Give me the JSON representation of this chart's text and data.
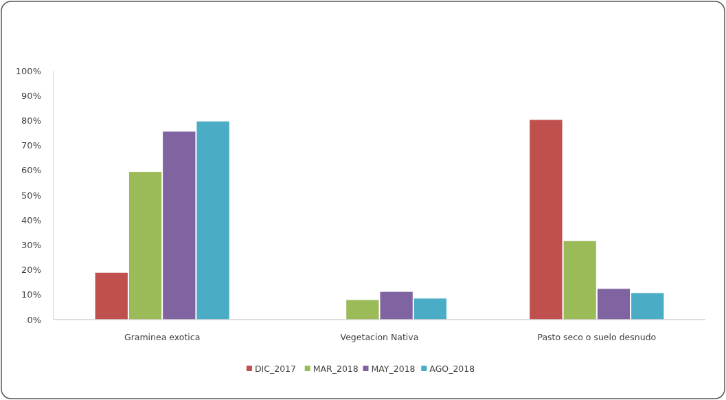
{
  "chart_data": {
    "type": "bar",
    "categories": [
      "Graminea exotica",
      "Vegetacion Nativa",
      "Pasto seco o suelo desnudo"
    ],
    "series": [
      {
        "name": "DIC_2017",
        "color": "#c0504d",
        "values": [
          19,
          0,
          80.4
        ]
      },
      {
        "name": "MAR_2018",
        "color": "#9bbb59",
        "values": [
          59.5,
          8,
          31.7
        ]
      },
      {
        "name": "MAY_2018",
        "color": "#8064a2",
        "values": [
          75.7,
          11.3,
          12.5
        ]
      },
      {
        "name": "AGO_2018",
        "color": "#4bacc6",
        "values": [
          79.8,
          8.6,
          10.8
        ]
      }
    ],
    "ylim": [
      0,
      100
    ],
    "yticks": [
      {
        "value": 0,
        "label": "0%"
      },
      {
        "value": 10,
        "label": "10%"
      },
      {
        "value": 20,
        "label": "20%"
      },
      {
        "value": 30,
        "label": "30%"
      },
      {
        "value": 40,
        "label": "40%"
      },
      {
        "value": 50,
        "label": "50%"
      },
      {
        "value": 60,
        "label": "60%"
      },
      {
        "value": 70,
        "label": "70%"
      },
      {
        "value": 80,
        "label": "80%"
      },
      {
        "value": 90,
        "label": "90%"
      },
      {
        "value": 100,
        "label": "100%"
      }
    ],
    "grid": false,
    "legend": "bottom"
  }
}
